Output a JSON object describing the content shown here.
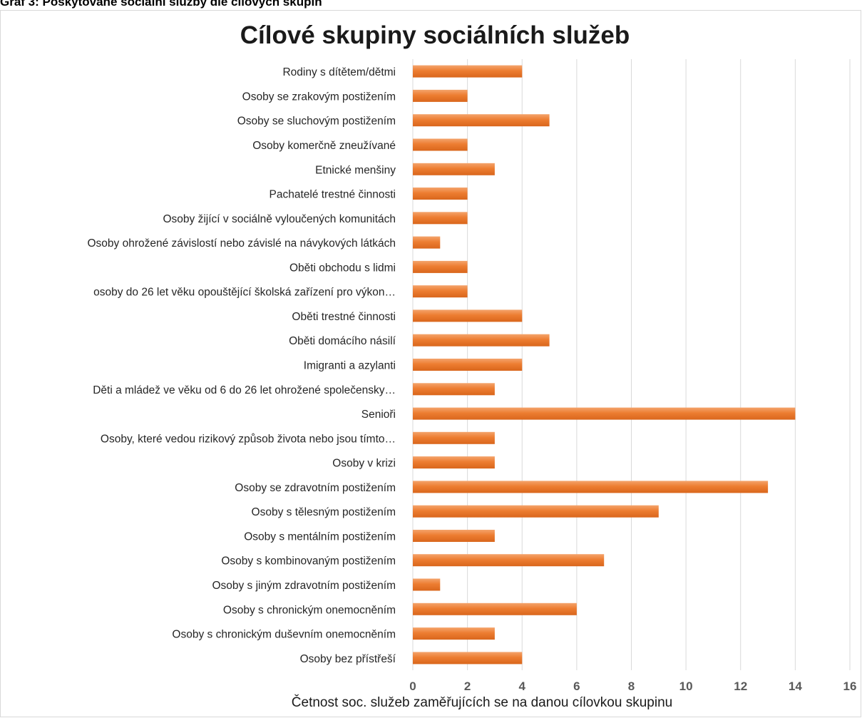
{
  "caption": "Graf 3: Poskytované sociální služby dle cílových skupin",
  "chart_data": {
    "type": "bar",
    "orientation": "horizontal",
    "title": "Cílové skupiny sociálních služeb",
    "xlabel": "Četnost soc. služeb zaměřujících se na danou cílovkou skupinu",
    "ylabel": "",
    "xlim": [
      0,
      16
    ],
    "xticks": [
      "0",
      "2",
      "4",
      "6",
      "8",
      "10",
      "12",
      "14",
      "16"
    ],
    "grid": "vertical",
    "legend": "none",
    "bar_color": "#ED7D31",
    "categories": [
      "Rodiny s dítětem/dětmi",
      "Osoby se zrakovým postižením",
      "Osoby se sluchovým postižením",
      "Osoby komerčně zneužívané",
      "Etnické menšiny",
      "Pachatelé trestné činnosti",
      "Osoby žijící v sociálně vyloučených komunitách",
      "Osoby ohrožené závislostí nebo závislé na návykových látkách",
      "Oběti obchodu s lidmi",
      "osoby do 26 let věku opouštějící školská zařízení pro výkon…",
      "Oběti trestné činnosti",
      "Oběti domácího násilí",
      "Imigranti a azylanti",
      "Děti a mládež ve věku od 6 do 26 let ohrožené společensky…",
      "Senioři",
      "Osoby, které vedou rizikový způsob života nebo jsou tímto…",
      "Osoby v krizi",
      "Osoby se zdravotním postižením",
      "Osoby s tělesným postižením",
      "Osoby s mentálním postižením",
      "Osoby s kombinovaným postižením",
      "Osoby s jiným zdravotním postižením",
      "Osoby s chronickým onemocněním",
      "Osoby s chronickým duševním onemocněním",
      "Osoby bez přístřeší"
    ],
    "values": [
      4,
      2,
      5,
      2,
      3,
      2,
      2,
      1,
      2,
      2,
      4,
      5,
      4,
      3,
      14,
      3,
      3,
      13,
      9,
      3,
      7,
      1,
      6,
      3,
      4
    ]
  }
}
